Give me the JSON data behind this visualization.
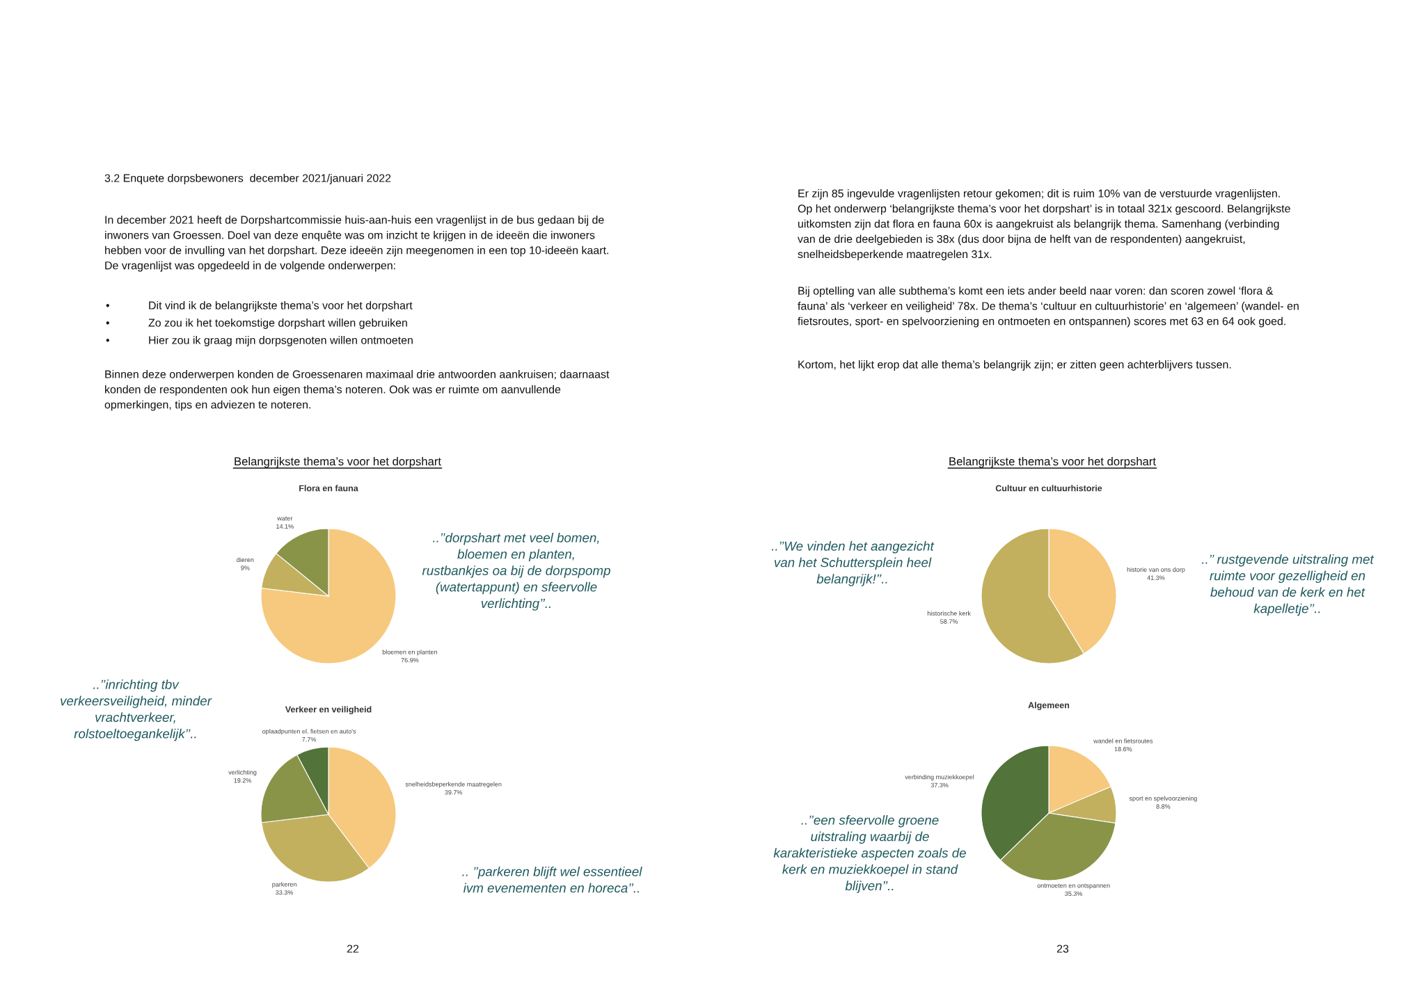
{
  "chart_data": [
    {
      "type": "pie",
      "title": "Flora en fauna",
      "categories": [
        "bloemen en planten",
        "dieren",
        "water"
      ],
      "values": [
        76.9,
        9,
        14.1
      ],
      "colors": [
        "#f6c97e",
        "#c2b05e",
        "#8a9448"
      ],
      "value_labels": [
        "76.9%",
        "9%",
        "14.1%"
      ],
      "annotations": [
        "3.2 Enquete dorpsbewoners  december 2021/januari 2022",
        "In december 2021 heeft de Dorpshartcommissie huis-aan-huis een vragenlijst in de bus gedaan bij de\ninwoners van Groessen. Doel van deze enquête was om inzicht te krijgen in de ideeën die inwoners\nhebben voor de invulling van het dorpshart. Deze ideeën zijn meegenomen in een top 10-ideeën kaart.\nDe vragenlijst was opgedeeld in de volgende onderwerpen:",
        "•",
        "Dit vind ik de belangrijkste thema’s voor het dorpshart",
        "•",
        "Zo zou ik het toekomstige dorpshart willen gebruiken",
        "•",
        "Hier zou ik graag mijn dorpsgenoten willen ontmoeten",
        "Binnen deze onderwerpen konden de Groessenaren maximaal drie antwoorden aankruisen; daarnaast\nkonden de respondenten ook hun eigen thema’s noteren. Ook was er ruimte om aanvullende\nopmerkingen, tips en adviezen te noteren.",
        "Belangrijkste thema’s voor het dorpshart",
        "..’’dorpshart met veel bomen,\nbloemen en planten,\nrustbankjes oa bij de dorpspomp\n(watertappunt) en sfeervolle\nverlichting’’..",
        "22"
      ]
    },
    {
      "type": "pie",
      "title": "Verkeer en veiligheid",
      "categories": [
        "snelheidsbeperkende maatregelen",
        "parkeren",
        "verlichting",
        "oplaadpunten el. fietsen en auto's"
      ],
      "values": [
        39.7,
        33.3,
        19.2,
        7.7
      ],
      "colors": [
        "#f6c97e",
        "#c2b05e",
        "#8a9448",
        "#52733a"
      ],
      "value_labels": [
        "39.7%",
        "33.3%",
        "19.2%",
        "7.7%"
      ],
      "annotations": [
        "..’’inrichting tbv\nverkeersveiligheid, minder\nvrachtverkeer,\nrolstoeltoegankelijk’’..",
        ".. ’’parkeren blijft wel essentieel\nivm evenementen en horeca’’.."
      ]
    },
    {
      "type": "pie",
      "title": "Cultuur en cultuurhistorie",
      "categories": [
        "historie van ons dorp",
        "historische kerk"
      ],
      "values": [
        41.3,
        58.7
      ],
      "colors": [
        "#f6c97e",
        "#c2b05e"
      ],
      "value_labels": [
        "41.3%",
        "58.7%"
      ],
      "annotations": [
        "Er zijn 85 ingevulde vragenlijsten retour gekomen; dit is ruim 10% van de verstuurde vragenlijsten.\nOp het onderwerp ‘belangrijkste thema’s voor het dorpshart’ is in totaal 321x gescoord. Belangrijkste\nuitkomsten zijn dat flora en fauna 60x is aangekruist als belangrijk thema. Samenhang (verbinding\nvan de drie deelgebieden is 38x (dus door bijna de helft van de respondenten) aangekruist,\nsnelheidsbeperkende maatregelen 31x.",
        "Bij optelling van alle subthema’s komt een iets ander beeld naar voren: dan scoren zowel ‘flora &\nfauna’ als ‘verkeer en veiligheid’ 78x. De thema’s ‘cultuur en cultuurhistorie’ en ‘algemeen’ (wandel- en\nfietsroutes, sport- en spelvoorziening en ontmoeten en ontspannen) scores met 63 en 64 ook goed.",
        "Kortom, het lijkt erop dat alle thema’s belangrijk zijn; er zitten geen achterblijvers tussen.",
        "Belangrijkste thema’s voor het dorpshart",
        "..’’We vinden het aangezicht\nvan het Schuttersplein heel\nbelangrijk!’’..",
        "..’’ rustgevende uitstraling met\nruimte voor gezelligheid en\nbehoud van de kerk en het\nkapelletje’’..",
        "23"
      ]
    },
    {
      "type": "pie",
      "title": "Algemeen",
      "categories": [
        "wandel en fietsroutes",
        "sport en spelvoorziening",
        "ontmoeten en ontspannen",
        "verbinding muziekkoepel"
      ],
      "values": [
        18.6,
        8.8,
        35.3,
        37.3
      ],
      "colors": [
        "#f6c97e",
        "#c2b05e",
        "#8a9448",
        "#52733a"
      ],
      "value_labels": [
        "18.6%",
        "8.8%",
        "35.3%",
        "37.3%"
      ],
      "annotations": [
        "..’’een sfeervolle groene\nuitstraling waarbij de\nkarakteristieke aspecten zoals de\nkerk en muziekkoepel in stand\nblijven’’.."
      ]
    }
  ]
}
